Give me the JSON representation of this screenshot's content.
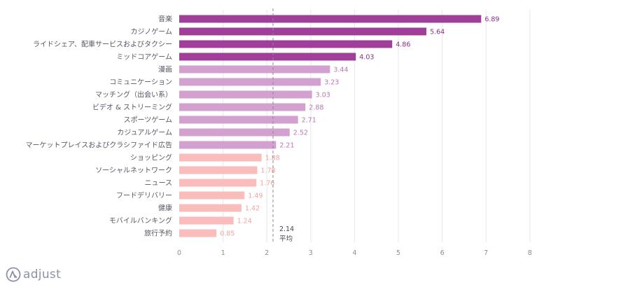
{
  "chart_data": {
    "type": "bar",
    "orientation": "horizontal",
    "categories": [
      "音楽",
      "カジノゲーム",
      "ライドシェア、配車サービスおよびタクシー",
      "ミッドコアゲーム",
      "漫画",
      "コミュニケーション",
      "マッチング（出会い系）",
      "ビデオ & ストリーミング",
      "スポーツゲーム",
      "カジュアルゲーム",
      "マーケットプレイスおよびクラシファイド広告",
      "ショッピング",
      "ソーシャルネットワーク",
      "ニュース",
      "フードデリバリー",
      "健康",
      "モバイルバンキング",
      "旅行予約"
    ],
    "values": [
      6.89,
      5.64,
      4.86,
      4.03,
      3.44,
      3.23,
      3.03,
      2.88,
      2.71,
      2.52,
      2.21,
      1.88,
      1.78,
      1.76,
      1.49,
      1.42,
      1.24,
      0.85
    ],
    "value_labels": [
      "6.89",
      "5.64",
      "4.86",
      "4.03",
      "3.44",
      "3.23",
      "3.03",
      "2.88",
      "2.71",
      "2.52",
      "2.21",
      "1.88",
      "1.78",
      "1.76",
      "1.49",
      "1.42",
      "1.24",
      "0.85"
    ],
    "bar_colors": [
      "#a03f9a",
      "#a03f9a",
      "#a03f9a",
      "#a03f9a",
      "#d3a1cf",
      "#d3a1cf",
      "#d3a1cf",
      "#d3a1cf",
      "#d3a1cf",
      "#d3a1cf",
      "#d3a1cf",
      "#f9bdbc",
      "#f9bdbc",
      "#f9bdbc",
      "#f9bdbc",
      "#f9bdbc",
      "#f9bdbc",
      "#f9bdbc"
    ],
    "label_colors": [
      "#8e2e88",
      "#8e2e88",
      "#8e2e88",
      "#8e2e88",
      "#b87ab3",
      "#b87ab3",
      "#b87ab3",
      "#b87ab3",
      "#b87ab3",
      "#b87ab3",
      "#b87ab3",
      "#f2a2a1",
      "#f2a2a1",
      "#f2a2a1",
      "#f2a2a1",
      "#f2a2a1",
      "#f2a2a1",
      "#f2a2a1"
    ],
    "xlim": [
      0,
      8
    ],
    "xticks": [
      "0",
      "1",
      "2",
      "3",
      "4",
      "5",
      "6",
      "7",
      "8"
    ],
    "grid": true,
    "average": {
      "value": 2.14,
      "value_label": "2.14",
      "label": "平均"
    },
    "title": "",
    "xlabel": "",
    "ylabel": ""
  },
  "branding": {
    "logo_text": "adjust"
  },
  "colors": {
    "grid": "#e6e7ec",
    "average_line": "#888899",
    "logo": "#8a93a6"
  }
}
